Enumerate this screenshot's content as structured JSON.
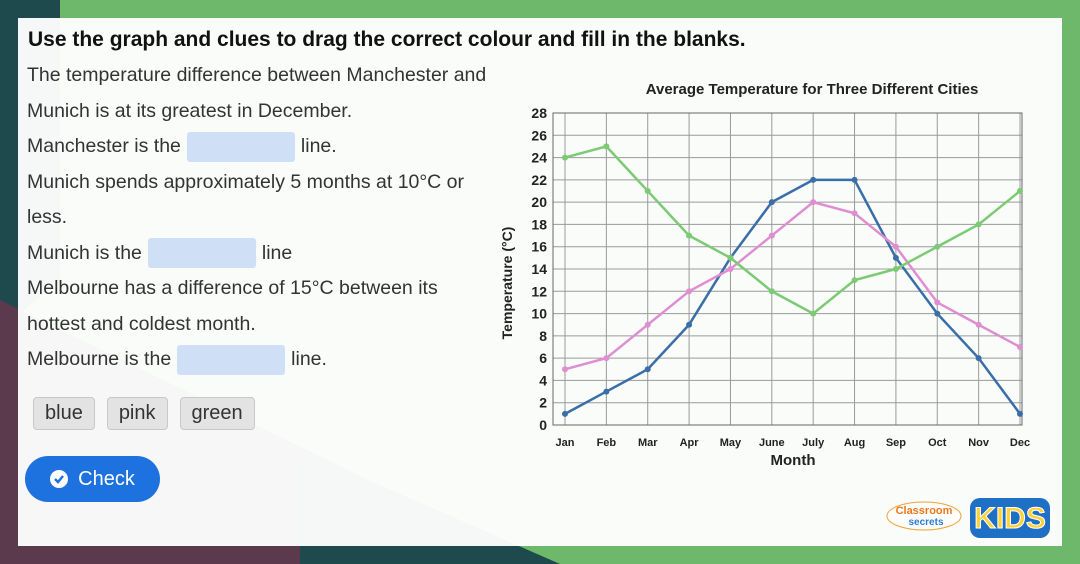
{
  "instruction": "Use the graph and clues to drag the correct colour and fill in the blanks.",
  "clues": [
    {
      "text": "The temperature difference between Manchester and Munich is at its greatest in December."
    },
    {
      "prefix": "Manchester is the",
      "suffix": "line."
    },
    {
      "text": "Munich spends approximately 5 months at 10°C or less."
    },
    {
      "prefix": "Munich is the",
      "suffix": "line"
    },
    {
      "text": "Melbourne has a difference of 15°C between its hottest and coldest month."
    },
    {
      "prefix": "Melbourne is the",
      "suffix": "line."
    }
  ],
  "options": [
    "blue",
    "pink",
    "green"
  ],
  "button": "Check",
  "logo": {
    "classroom": "Classroom",
    "secrets": "secrets",
    "kids": "KIDS"
  },
  "chart_data": {
    "type": "line",
    "title": "Average Temperature for Three Different Cities",
    "x_label": "Month",
    "y_label": "Temperature (°C)",
    "categories": [
      "Jan",
      "Feb",
      "Mar",
      "Apr",
      "May",
      "June",
      "July",
      "Aug",
      "Sep",
      "Oct",
      "Nov",
      "Dec"
    ],
    "series": [
      {
        "color": "#3a6ea8",
        "values": [
          1,
          3,
          5,
          9,
          15,
          20,
          22,
          22,
          15,
          10,
          6,
          1
        ]
      },
      {
        "color": "#e08ed2",
        "values": [
          5,
          6,
          9,
          12,
          14,
          17,
          20,
          19,
          16,
          11,
          9,
          7
        ]
      },
      {
        "color": "#7ccb74",
        "values": [
          24,
          25,
          21,
          17,
          15,
          12,
          10,
          13,
          14,
          16,
          18,
          21
        ]
      }
    ],
    "ylim": [
      0,
      28
    ],
    "yticks": [
      0,
      2,
      4,
      6,
      8,
      10,
      12,
      14,
      16,
      18,
      20,
      22,
      24,
      26,
      28
    ],
    "grid": true
  }
}
